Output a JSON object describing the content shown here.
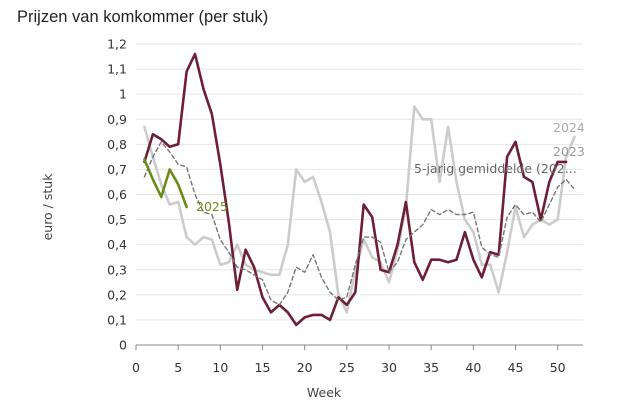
{
  "chart_data": {
    "type": "line",
    "title": "Prijzen van komkommer (per stuk)",
    "xlabel": "Week",
    "ylabel": "euro / stuk",
    "xlim": [
      0,
      53
    ],
    "ylim": [
      0,
      1.2
    ],
    "xticks": [
      0,
      5,
      10,
      15,
      20,
      25,
      30,
      35,
      40,
      45,
      50
    ],
    "yticks": [
      0,
      0.1,
      0.2,
      0.3,
      0.4,
      0.5,
      0.6,
      0.7,
      0.8,
      0.9,
      1,
      1.1,
      1.2
    ],
    "ytick_labels": [
      "0",
      "0,1",
      "0,2",
      "0,3",
      "0,4",
      "0,5",
      "0,6",
      "0,7",
      "0,8",
      "0,9",
      "1",
      "1,1",
      "1,2"
    ],
    "xtick_labels": [
      "0",
      "5",
      "10",
      "15",
      "20",
      "25",
      "30",
      "35",
      "40",
      "45",
      "50"
    ],
    "grid": "horizontal",
    "series": [
      {
        "name": "2024",
        "color": "#cccccc",
        "dash": "solid",
        "label_text": "2024",
        "x": [
          1,
          2,
          3,
          4,
          5,
          6,
          7,
          8,
          9,
          10,
          11,
          12,
          13,
          14,
          15,
          16,
          17,
          18,
          19,
          20,
          21,
          22,
          23,
          24,
          25,
          26,
          27,
          28,
          29,
          30,
          31,
          32,
          33,
          34,
          35,
          36,
          37,
          38,
          39,
          40,
          41,
          42,
          43,
          44,
          45,
          46,
          47,
          48,
          49,
          50,
          51,
          52
        ],
        "y": [
          0.87,
          0.75,
          0.64,
          0.56,
          0.57,
          0.43,
          0.4,
          0.43,
          0.42,
          0.32,
          0.33,
          0.4,
          0.32,
          0.3,
          0.29,
          0.28,
          0.28,
          0.4,
          0.7,
          0.65,
          0.67,
          0.57,
          0.45,
          0.2,
          0.13,
          0.3,
          0.42,
          0.35,
          0.33,
          0.25,
          0.38,
          0.55,
          0.95,
          0.9,
          0.9,
          0.65,
          0.87,
          0.65,
          0.5,
          0.45,
          0.32,
          0.32,
          0.21,
          0.37,
          0.55,
          0.43,
          0.48,
          0.5,
          0.48,
          0.5,
          0.75,
          0.83
        ]
      },
      {
        "name": "2023",
        "color": "#6e1f34",
        "dash": "solid",
        "label_text": "2023",
        "x": [
          1,
          2,
          3,
          4,
          5,
          6,
          7,
          8,
          9,
          10,
          11,
          12,
          13,
          14,
          15,
          16,
          17,
          18,
          19,
          20,
          21,
          22,
          23,
          24,
          25,
          26,
          27,
          28,
          29,
          30,
          31,
          32,
          33,
          34,
          35,
          36,
          37,
          38,
          39,
          40,
          41,
          42,
          43,
          44,
          45,
          46,
          47,
          48,
          49,
          50,
          51
        ],
        "y": [
          0.73,
          0.84,
          0.82,
          0.79,
          0.8,
          1.09,
          1.16,
          1.02,
          0.92,
          0.72,
          0.49,
          0.22,
          0.38,
          0.31,
          0.19,
          0.13,
          0.16,
          0.13,
          0.08,
          0.11,
          0.12,
          0.12,
          0.1,
          0.19,
          0.16,
          0.21,
          0.56,
          0.51,
          0.3,
          0.29,
          0.4,
          0.57,
          0.33,
          0.26,
          0.34,
          0.34,
          0.33,
          0.34,
          0.45,
          0.34,
          0.27,
          0.37,
          0.36,
          0.75,
          0.81,
          0.67,
          0.65,
          0.5,
          0.65,
          0.73,
          0.73
        ]
      },
      {
        "name": "5-jarig gemiddelde (202...",
        "color": "#777777",
        "dash": "dashed",
        "label_text": "5-jarig gemiddelde (202...",
        "x": [
          1,
          2,
          3,
          4,
          5,
          6,
          7,
          8,
          9,
          10,
          11,
          12,
          13,
          14,
          15,
          16,
          17,
          18,
          19,
          20,
          21,
          22,
          23,
          24,
          25,
          26,
          27,
          28,
          29,
          30,
          31,
          32,
          33,
          34,
          35,
          36,
          37,
          38,
          39,
          40,
          41,
          42,
          43,
          44,
          45,
          46,
          47,
          48,
          49,
          50,
          51,
          52
        ],
        "y": [
          0.67,
          0.75,
          0.81,
          0.77,
          0.72,
          0.71,
          0.6,
          0.53,
          0.52,
          0.42,
          0.37,
          0.31,
          0.3,
          0.28,
          0.26,
          0.18,
          0.16,
          0.21,
          0.31,
          0.29,
          0.36,
          0.27,
          0.21,
          0.18,
          0.19,
          0.32,
          0.43,
          0.43,
          0.41,
          0.29,
          0.33,
          0.42,
          0.45,
          0.48,
          0.54,
          0.52,
          0.54,
          0.52,
          0.52,
          0.53,
          0.39,
          0.36,
          0.35,
          0.51,
          0.56,
          0.52,
          0.53,
          0.49,
          0.56,
          0.63,
          0.66,
          0.62
        ]
      },
      {
        "name": "2025",
        "color": "#6b8c1a",
        "dash": "solid",
        "label_text": "2025",
        "x": [
          1,
          2,
          3,
          4,
          5,
          6
        ],
        "y": [
          0.74,
          0.66,
          0.59,
          0.7,
          0.64,
          0.55
        ]
      }
    ]
  }
}
